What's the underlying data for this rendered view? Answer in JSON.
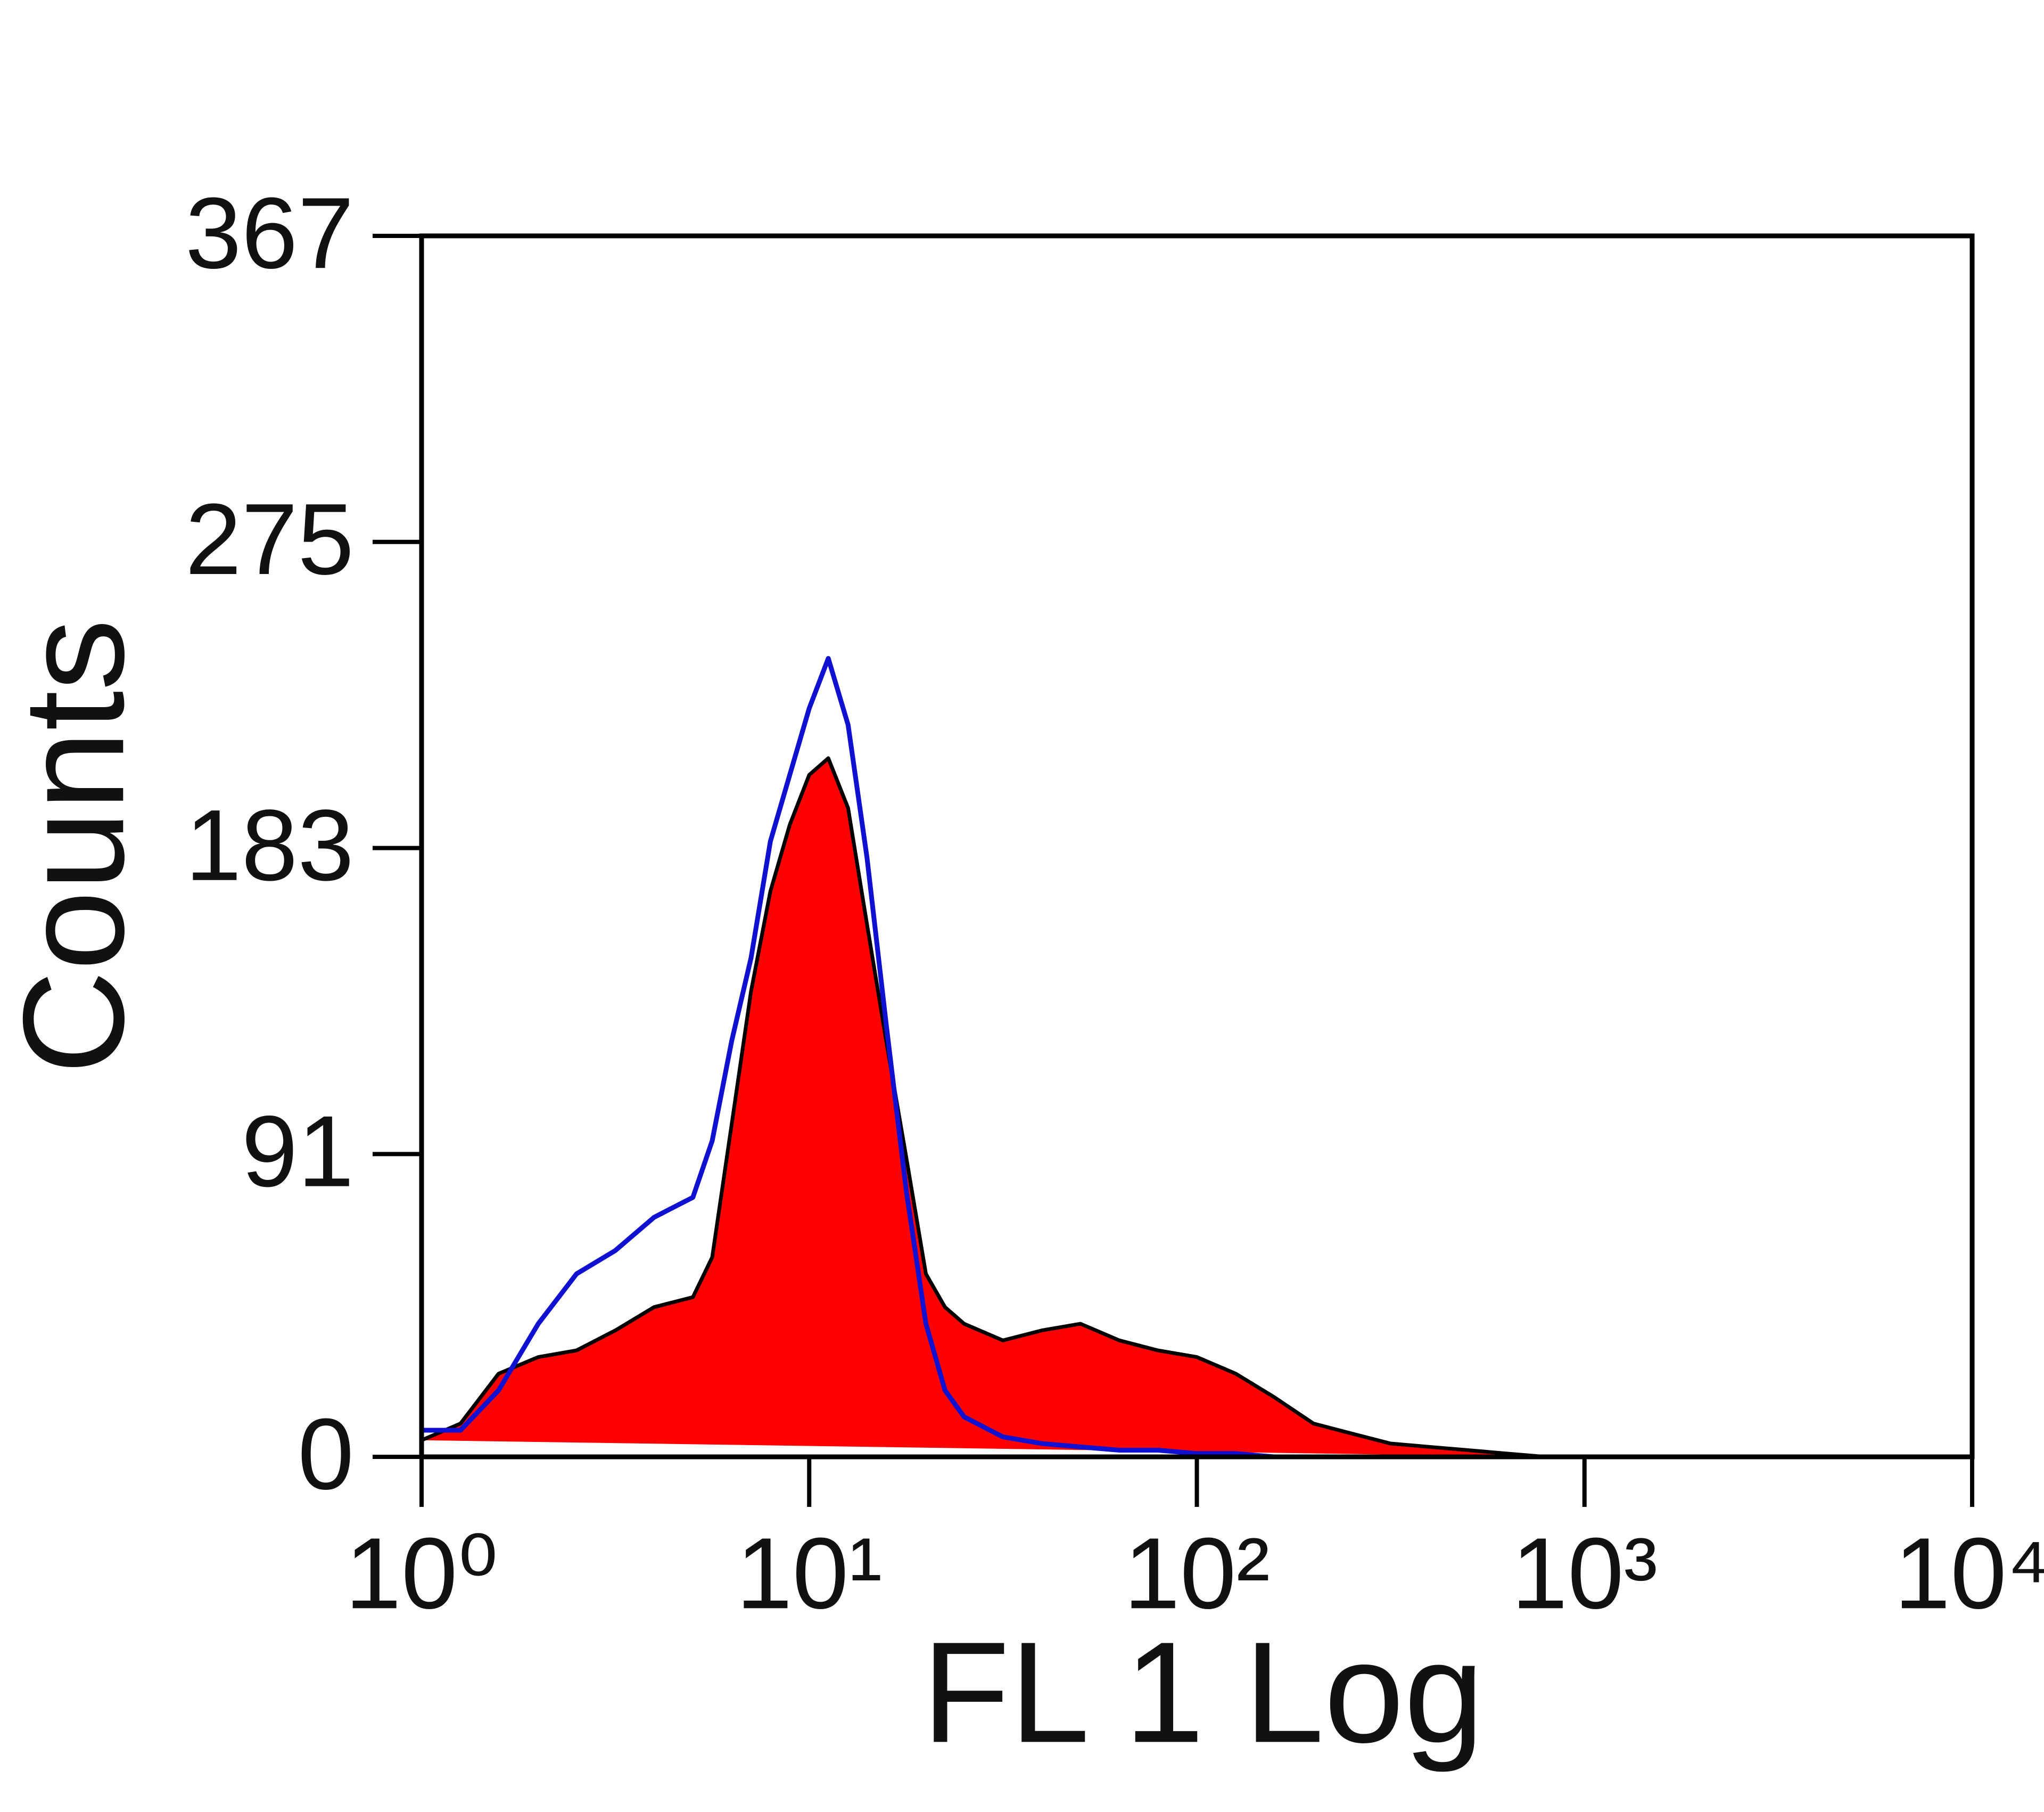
{
  "chart_data": {
    "type": "histogram",
    "xlabel": "FL 1 Log",
    "ylabel": "Counts",
    "xscale": "log",
    "x": [
      1,
      1.26,
      1.58,
      2,
      2.51,
      3.16,
      3.98,
      5.01,
      5.62,
      6.31,
      7.08,
      7.94,
      8.91,
      10,
      11.2,
      12.6,
      14.1,
      15.8,
      17.8,
      20,
      22.4,
      25.1,
      31.6,
      39.8,
      50.1,
      63.1,
      79.4,
      100,
      126,
      158,
      200,
      251,
      316,
      398,
      501,
      631,
      794
    ],
    "series": [
      {
        "color": "#ff0000",
        "line_color": "#000000",
        "fill": true,
        "values": [
          5,
          10,
          25,
          30,
          32,
          38,
          45,
          48,
          60,
          100,
          140,
          170,
          190,
          205,
          210,
          195,
          160,
          125,
          90,
          55,
          45,
          40,
          35,
          38,
          40,
          35,
          32,
          30,
          25,
          18,
          10,
          7,
          4,
          3,
          2,
          1,
          0
        ]
      },
      {
        "color": "#1010d0",
        "fill": false,
        "values": [
          8,
          8,
          20,
          40,
          55,
          62,
          72,
          78,
          95,
          125,
          150,
          185,
          205,
          225,
          240,
          220,
          180,
          130,
          80,
          40,
          20,
          12,
          6,
          4,
          3,
          2,
          2,
          1,
          1,
          0,
          0,
          0,
          0,
          0,
          0,
          0,
          0
        ]
      }
    ],
    "xlim": [
      1,
      10000
    ],
    "xticks": [
      {
        "value": 1,
        "label": "10⁰"
      },
      {
        "value": 10,
        "label": "10¹"
      },
      {
        "value": 100,
        "label": "10²"
      },
      {
        "value": 1000,
        "label": "10³"
      },
      {
        "value": 10000,
        "label": "10⁴"
      }
    ],
    "ylim": [
      0,
      367
    ],
    "yticks": [
      0,
      91,
      183,
      275,
      367
    ]
  }
}
